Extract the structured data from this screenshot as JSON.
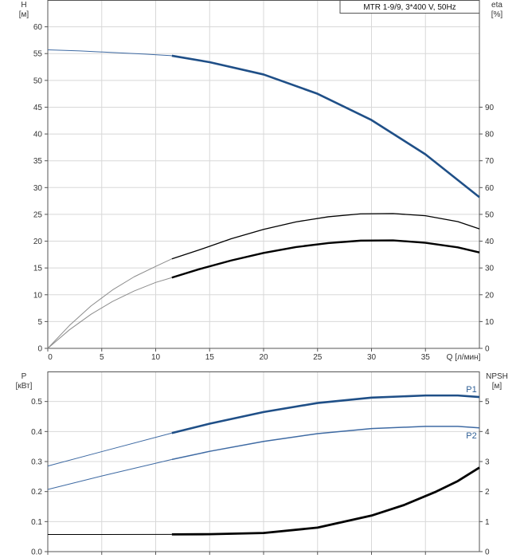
{
  "legend_text": "MTR 1-9/9, 3*400 V, 50Hz",
  "colors": {
    "blue": "#1f4f87",
    "thin_blue": "#3e6aa3",
    "black": "#000000",
    "gray": "#8c8c8c",
    "grid": "#d8d8d8",
    "frame": "#555555"
  },
  "chart_data": [
    {
      "type": "line",
      "panel": "top",
      "x_axis": {
        "label": "Q [л/мин]",
        "range": [
          0,
          40
        ],
        "ticks": [
          0,
          5,
          10,
          15,
          20,
          25,
          30,
          35
        ],
        "tick_labels": [
          "0",
          "5",
          "10",
          "15",
          "20",
          "25",
          "30",
          "35"
        ]
      },
      "y_left": {
        "label_line1": "H",
        "label_line2": "[м]",
        "range": [
          0,
          65
        ],
        "ticks": [
          0,
          5,
          10,
          15,
          20,
          25,
          30,
          35,
          40,
          45,
          50,
          55,
          60
        ]
      },
      "y_right": {
        "label_line1": "eta",
        "label_line2": "[%]",
        "range": [
          0,
          130
        ],
        "ticks": [
          0,
          10,
          20,
          30,
          40,
          50,
          60,
          70,
          80,
          90
        ]
      },
      "grid": true,
      "series": [
        {
          "axis": "left",
          "style": "head",
          "points": [
            [
              0,
              55.7
            ],
            [
              3,
              55.5
            ],
            [
              6,
              55.2
            ],
            [
              9,
              54.9
            ],
            [
              11.5,
              54.6
            ],
            [
              15,
              53.4
            ],
            [
              20,
              51.1
            ],
            [
              25,
              47.5
            ],
            [
              30,
              42.6
            ],
            [
              35,
              36.2
            ],
            [
              40,
              28.2
            ]
          ],
          "operating_from": 11.5
        },
        {
          "axis": "right",
          "style": "efficiency_thin",
          "points": [
            [
              0,
              0
            ],
            [
              2,
              8.5
            ],
            [
              4,
              15.8
            ],
            [
              6,
              21.8
            ],
            [
              8,
              26.7
            ],
            [
              10,
              30.6
            ],
            [
              11.5,
              33.4
            ],
            [
              14,
              36.7
            ],
            [
              17,
              40.9
            ],
            [
              20,
              44.4
            ],
            [
              23,
              47.2
            ],
            [
              26,
              49.1
            ],
            [
              29,
              50.2
            ],
            [
              32,
              50.3
            ],
            [
              35,
              49.5
            ],
            [
              38,
              47.3
            ],
            [
              40,
              44.6
            ]
          ],
          "operating_from": 11.5
        },
        {
          "axis": "right",
          "style": "efficiency_thick",
          "points": [
            [
              0,
              0
            ],
            [
              2,
              6.9
            ],
            [
              4,
              12.7
            ],
            [
              6,
              17.5
            ],
            [
              8,
              21.4
            ],
            [
              10,
              24.6
            ],
            [
              11.5,
              26.4
            ],
            [
              14,
              29.5
            ],
            [
              17,
              32.8
            ],
            [
              20,
              35.6
            ],
            [
              23,
              37.8
            ],
            [
              26,
              39.3
            ],
            [
              29,
              40.2
            ],
            [
              32,
              40.3
            ],
            [
              35,
              39.4
            ],
            [
              38,
              37.7
            ],
            [
              40,
              35.8
            ]
          ],
          "operating_from": 11.5
        }
      ]
    },
    {
      "type": "line",
      "panel": "bottom",
      "x_axis": {
        "range": [
          0,
          40
        ],
        "ticks": [
          0,
          5,
          10,
          15,
          20,
          25,
          30,
          35
        ]
      },
      "y_left": {
        "label_line1": "P",
        "label_line2": "[кВт]",
        "range": [
          0,
          0.6
        ],
        "ticks": [
          0,
          0.1,
          0.2,
          0.3,
          0.4,
          0.5
        ],
        "tick_labels": [
          "0.0",
          "0.1",
          "0.2",
          "0.3",
          "0.4",
          "0.5"
        ]
      },
      "y_right": {
        "label_line1": "NPSH",
        "label_line2": "[м]",
        "range": [
          0,
          6
        ],
        "ticks": [
          0,
          1,
          2,
          3,
          4,
          5
        ]
      },
      "grid": true,
      "series": [
        {
          "name": "P1",
          "axis": "left",
          "style": "p1",
          "points": [
            [
              0,
              0.285
            ],
            [
              5,
              0.333
            ],
            [
              11.5,
              0.395
            ],
            [
              15,
              0.426
            ],
            [
              20,
              0.465
            ],
            [
              25,
              0.495
            ],
            [
              30,
              0.513
            ],
            [
              35,
              0.52
            ],
            [
              38,
              0.52
            ],
            [
              40,
              0.515
            ]
          ],
          "operating_from": 11.5
        },
        {
          "name": "P2",
          "axis": "left",
          "style": "p2",
          "points": [
            [
              0,
              0.207
            ],
            [
              5,
              0.252
            ],
            [
              11.5,
              0.307
            ],
            [
              15,
              0.334
            ],
            [
              20,
              0.367
            ],
            [
              25,
              0.393
            ],
            [
              30,
              0.41
            ],
            [
              35,
              0.417
            ],
            [
              38,
              0.417
            ],
            [
              40,
              0.412
            ]
          ],
          "operating_from": 11.5
        },
        {
          "axis": "right",
          "style": "npsh",
          "points": [
            [
              0,
              0.57
            ],
            [
              5,
              0.57
            ],
            [
              11.5,
              0.575
            ],
            [
              15,
              0.58
            ],
            [
              20,
              0.62
            ],
            [
              25,
              0.8
            ],
            [
              30,
              1.2
            ],
            [
              33,
              1.55
            ],
            [
              36,
              2.0
            ],
            [
              38,
              2.35
            ],
            [
              40,
              2.8
            ]
          ],
          "operating_from": 11.5
        }
      ]
    }
  ]
}
